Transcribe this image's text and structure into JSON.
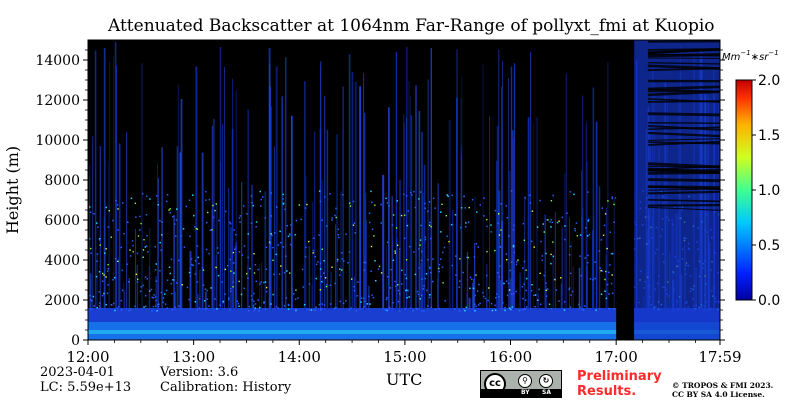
{
  "chart_data": {
    "type": "heatmap",
    "title": "Attenuated Backscatter at 1064nm Far-Range of pollyxt_fmi at Kuopio",
    "ylabel": "Height (m)",
    "xlabel": "UTC",
    "x_tick_labels": [
      "12:00",
      "13:00",
      "14:00",
      "15:00",
      "16:00",
      "17:00",
      "17:59"
    ],
    "x_ticks_hours": [
      12.0,
      13.0,
      14.0,
      15.0,
      16.0,
      17.0,
      17.983
    ],
    "xlim_hours": [
      12.0,
      17.983
    ],
    "y_ticks": [
      0,
      2000,
      4000,
      6000,
      8000,
      10000,
      12000,
      14000
    ],
    "y_tick_labels": [
      "0",
      "2000",
      "4000",
      "6000",
      "8000",
      "10000",
      "12000",
      "14000"
    ],
    "ylim": [
      0,
      15000
    ],
    "no_data_interval_hours": [
      17.0,
      17.17
    ],
    "colorbar": {
      "label": "Mm^{-1}*sr^{-1}",
      "label_base": "Mm",
      "label_exp1": "−1",
      "label_mid": "∗sr",
      "label_exp2": "−1",
      "range": [
        0.0,
        2.0
      ],
      "ticks": [
        0.0,
        0.5,
        1.0,
        1.5,
        2.0
      ],
      "tick_labels": [
        "0.0",
        "0.5",
        "1.0",
        "1.5",
        "2.0"
      ],
      "colormap": "jet"
    },
    "grid": false
  },
  "info": {
    "date": "2023-04-01",
    "lc": "LC: 5.59e+13",
    "version": "Version: 3.6",
    "calibration": "Calibration: History"
  },
  "footer": {
    "preliminary_line1": "Preliminary",
    "preliminary_line2": "Results.",
    "copyright_line1": "© TROPOS & FMI 2023.",
    "copyright_line2": "CC BY SA 4.0 License.",
    "cc_label": "cc",
    "by_label": "BY",
    "sa_label": "SA"
  },
  "colors": {
    "background_black": "#000000",
    "low_signal_blue": "#1e40d8",
    "preliminary_red": "#ff2a2a"
  }
}
